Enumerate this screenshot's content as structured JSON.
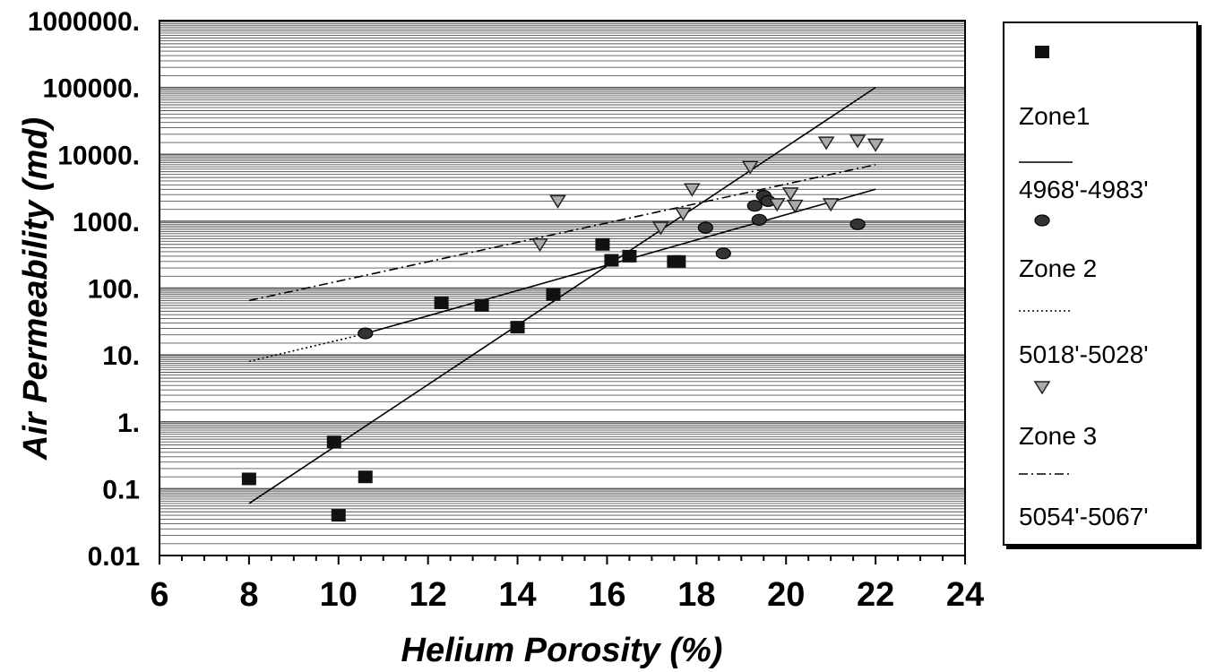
{
  "chart_data": {
    "type": "scatter",
    "xlabel": "Helium Porosity (%)",
    "ylabel": "Air Permeability (md)",
    "xlim": [
      6,
      24
    ],
    "ylim": [
      0.01,
      1000000
    ],
    "y_scale": "log",
    "grid": true,
    "legend_position": "right",
    "x_tick_labels": [
      "6",
      "8",
      "10",
      "12",
      "14",
      "16",
      "18",
      "20",
      "22",
      "24"
    ],
    "y_tick_labels": [
      "0.01",
      "0.1",
      "1.",
      "10.",
      "100.",
      "1000.",
      "10000.",
      "100000.",
      "1000000."
    ],
    "legend": [
      "Zone1",
      "4968'-4983'",
      "Zone 2",
      "5018'-5028'",
      "Zone 3",
      "5054'-5067'"
    ],
    "series": [
      {
        "name": "Zone1",
        "marker": "square",
        "points": [
          {
            "x": 8.0,
            "y": 0.14
          },
          {
            "x": 9.9,
            "y": 0.5
          },
          {
            "x": 10.0,
            "y": 0.04
          },
          {
            "x": 10.6,
            "y": 0.15
          },
          {
            "x": 12.3,
            "y": 60
          },
          {
            "x": 13.2,
            "y": 55
          },
          {
            "x": 14.0,
            "y": 26
          },
          {
            "x": 14.8,
            "y": 80
          },
          {
            "x": 15.9,
            "y": 450
          },
          {
            "x": 16.1,
            "y": 260
          },
          {
            "x": 16.5,
            "y": 300
          },
          {
            "x": 17.5,
            "y": 250
          },
          {
            "x": 17.6,
            "y": 250
          }
        ]
      },
      {
        "name": "4968'-4983'",
        "line_style": "solid",
        "points": [
          {
            "x": 8.0,
            "y": 0.06
          },
          {
            "x": 22.0,
            "y": 100000
          }
        ]
      },
      {
        "name": "Zone 2",
        "marker": "circle",
        "points": [
          {
            "x": 10.6,
            "y": 21
          },
          {
            "x": 18.2,
            "y": 800
          },
          {
            "x": 18.6,
            "y": 330
          },
          {
            "x": 19.3,
            "y": 1700
          },
          {
            "x": 19.4,
            "y": 1050
          },
          {
            "x": 19.5,
            "y": 2400
          },
          {
            "x": 19.6,
            "y": 2000
          },
          {
            "x": 21.6,
            "y": 900
          }
        ]
      },
      {
        "name": "5018'-5028'",
        "line_style": "dotted-solid",
        "points": [
          {
            "x": 8.0,
            "y": 8
          },
          {
            "x": 10.5,
            "y": 20
          },
          {
            "x": 22.0,
            "y": 3000
          }
        ]
      },
      {
        "name": "Zone 3",
        "marker": "triangle-down",
        "points": [
          {
            "x": 14.5,
            "y": 450
          },
          {
            "x": 14.9,
            "y": 2000
          },
          {
            "x": 17.2,
            "y": 800
          },
          {
            "x": 17.7,
            "y": 1300
          },
          {
            "x": 17.9,
            "y": 3000
          },
          {
            "x": 19.2,
            "y": 6500
          },
          {
            "x": 19.8,
            "y": 1800
          },
          {
            "x": 20.1,
            "y": 2600
          },
          {
            "x": 20.2,
            "y": 1700
          },
          {
            "x": 20.9,
            "y": 15000
          },
          {
            "x": 21.0,
            "y": 1800
          },
          {
            "x": 21.6,
            "y": 16000
          },
          {
            "x": 22.0,
            "y": 14000
          }
        ]
      },
      {
        "name": "5054'-5067'",
        "line_style": "dash-dot",
        "points": [
          {
            "x": 8.0,
            "y": 65
          },
          {
            "x": 22.0,
            "y": 7000
          }
        ]
      }
    ]
  }
}
